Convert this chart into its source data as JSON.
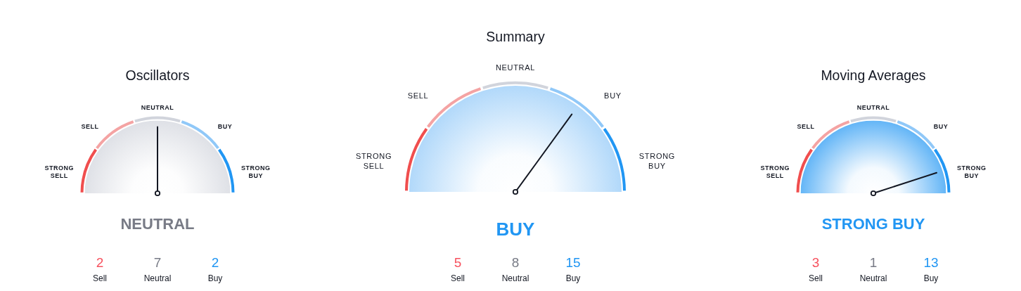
{
  "chart_data": [
    {
      "type": "pie",
      "title": "Oscillators",
      "categories": [
        "STRONG SELL",
        "SELL",
        "NEUTRAL",
        "BUY",
        "STRONG BUY"
      ],
      "values": [
        20,
        20,
        20,
        20,
        20
      ],
      "colors": [
        "#f04e4e",
        "#f4a3a3",
        "#d1d4dc",
        "#90c8f8",
        "#2196f3"
      ],
      "needle": "NEUTRAL"
    },
    {
      "type": "other",
      "categories": [
        "Sell",
        "Neutral",
        "Buy"
      ],
      "values": [
        2,
        7,
        2
      ],
      "colors": [
        "#f7525f",
        "#787b86",
        "#2196f3"
      ],
      "data_labels": true
    },
    {
      "type": "pie",
      "title": "Summary",
      "categories": [
        "STRONG SELL",
        "SELL",
        "NEUTRAL",
        "BUY",
        "STRONG BUY"
      ],
      "values": [
        20,
        20,
        20,
        20,
        20
      ],
      "colors": [
        "#f04e4e",
        "#f4a3a3",
        "#d1d4dc",
        "#90c8f8",
        "#2196f3"
      ],
      "needle": "BUY"
    },
    {
      "type": "other",
      "categories": [
        "Sell",
        "Neutral",
        "Buy"
      ],
      "values": [
        5,
        8,
        15
      ],
      "colors": [
        "#f7525f",
        "#787b86",
        "#2196f3"
      ],
      "data_labels": true
    },
    {
      "type": "pie",
      "title": "Moving Averages",
      "categories": [
        "STRONG SELL",
        "SELL",
        "NEUTRAL",
        "BUY",
        "STRONG BUY"
      ],
      "values": [
        20,
        20,
        20,
        20,
        20
      ],
      "colors": [
        "#f04e4e",
        "#f4a3a3",
        "#d1d4dc",
        "#90c8f8",
        "#2196f3"
      ],
      "needle": "STRONG BUY"
    },
    {
      "type": "other",
      "categories": [
        "Sell",
        "Neutral",
        "Buy"
      ],
      "values": [
        3,
        1,
        13
      ],
      "colors": [
        "#f7525f",
        "#787b86",
        "#2196f3"
      ],
      "data_labels": true
    }
  ]
}
